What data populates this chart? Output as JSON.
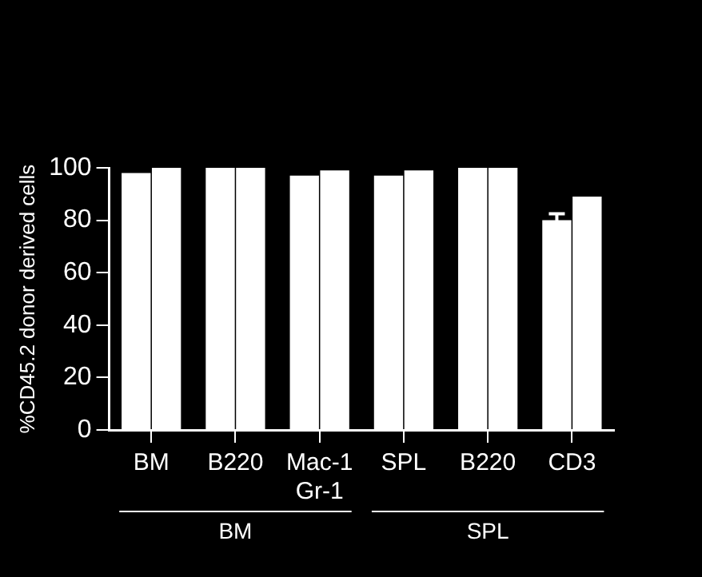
{
  "chart_data": {
    "type": "bar",
    "ylabel": "%CD45.2 donor derived cells",
    "categories": [
      "BM",
      "B220",
      "Mac-1\nGr-1",
      "SPL",
      "B220",
      "CD3"
    ],
    "series": [
      {
        "color": "#ffffff",
        "values": [
          98,
          100,
          97,
          97,
          100,
          80
        ],
        "errors": [
          null,
          null,
          null,
          null,
          null,
          2.5
        ]
      },
      {
        "color": "#ffffff",
        "values": [
          100,
          100,
          99,
          99,
          100,
          89
        ]
      }
    ],
    "ylim": [
      0,
      100
    ],
    "yticks": [
      0,
      20,
      40,
      60,
      80,
      100
    ],
    "annotations": [
      "BM",
      "SPL"
    ]
  }
}
